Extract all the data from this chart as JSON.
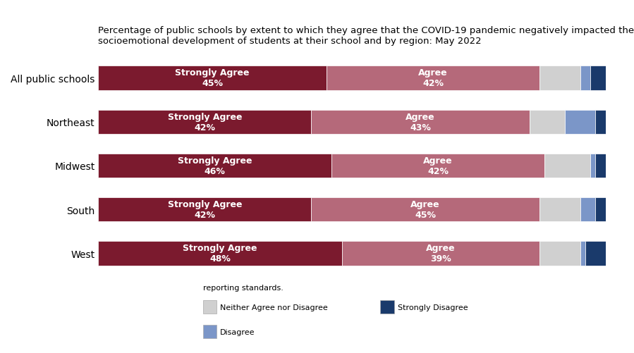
{
  "title": "Percentage of public schools by extent to which they agree that the COVID-19 pandemic negatively impacted the\nsocioemotional development of students at their school and by region: May 2022",
  "categories": [
    "All public schools",
    "Northeast",
    "Midwest",
    "South",
    "West"
  ],
  "segments": {
    "Strongly Agree": [
      45,
      42,
      46,
      42,
      48
    ],
    "Agree": [
      42,
      43,
      42,
      45,
      39
    ],
    "Neither Agree nor Disagree": [
      8,
      7,
      9,
      8,
      8
    ],
    "Disagree": [
      2,
      6,
      1,
      3,
      1
    ],
    "Strongly Disagree": [
      3,
      2,
      3,
      2,
      4
    ]
  },
  "colors": {
    "Strongly Agree": "#7b1a2e",
    "Agree": "#b5697a",
    "Neither Agree nor Disagree": "#d0d0d0",
    "Disagree": "#7b96c8",
    "Strongly Disagree": "#1a3a6b"
  },
  "note": "reporting standards.",
  "background_color": "#ffffff",
  "bar_height": 0.55,
  "label_fontsize": 9,
  "title_fontsize": 9.5,
  "left_panel_color": "#2e6d8e"
}
